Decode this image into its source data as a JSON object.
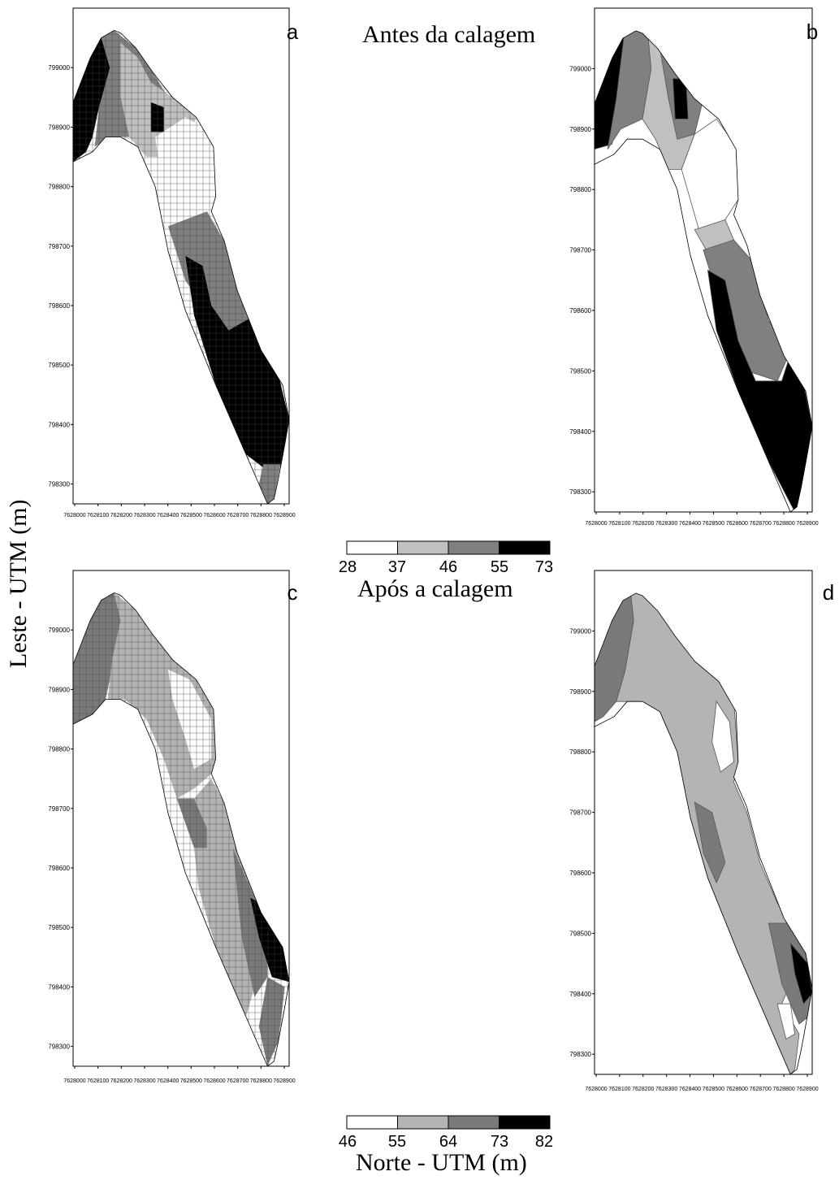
{
  "figure": {
    "y_axis_title": "Leste - UTM (m)",
    "x_axis_title": "Norte - UTM (m)"
  },
  "panels": [
    {
      "letter": "a",
      "caption": "Antes da calagem",
      "map_style": "grid",
      "y_ticks": [
        "799000",
        "798900",
        "798800",
        "798700",
        "798600",
        "798500",
        "798400",
        "798300"
      ],
      "x_ticks": [
        "7628000",
        "7628100",
        "7628200",
        "7628300",
        "7628400",
        "7628500",
        "7628600",
        "7628700",
        "7628800",
        "7628900"
      ]
    },
    {
      "letter": "b",
      "caption": "",
      "map_style": "contour",
      "y_ticks": [
        "799000",
        "798900",
        "798800",
        "798700",
        "798600",
        "798500",
        "798400",
        "798300"
      ],
      "x_ticks": [
        "7628000",
        "7628100",
        "7628200",
        "7628300",
        "7628400",
        "7628500",
        "7628600",
        "7628700",
        "7628800",
        "7628900"
      ]
    },
    {
      "letter": "c",
      "caption": "Após a calagem",
      "map_style": "grid",
      "y_ticks": [
        "799000",
        "798900",
        "798800",
        "798700",
        "798600",
        "798500",
        "798400",
        "798300"
      ],
      "x_ticks": [
        "7628000",
        "7628100",
        "7628200",
        "7628300",
        "7628400",
        "7628500",
        "7628600",
        "7628700",
        "7628800",
        "7628900"
      ]
    },
    {
      "letter": "d",
      "caption": "",
      "map_style": "contour",
      "y_ticks": [
        "799000",
        "798900",
        "798800",
        "798700",
        "798600",
        "798500",
        "798400",
        "798300"
      ],
      "x_ticks": [
        "7628000",
        "7628100",
        "7628200",
        "7628300",
        "7628400",
        "7628500",
        "7628600",
        "7628700",
        "7628800",
        "7628900"
      ]
    }
  ],
  "legends": [
    {
      "colors": [
        "#ffffff",
        "#c0c0c0",
        "#808080",
        "#000000"
      ],
      "labels": [
        "28",
        "37",
        "46",
        "55",
        "73"
      ]
    },
    {
      "colors": [
        "#ffffff",
        "#b4b4b4",
        "#7a7a7a",
        "#000000"
      ],
      "labels": [
        "46",
        "55",
        "64",
        "73",
        "82"
      ]
    }
  ]
}
